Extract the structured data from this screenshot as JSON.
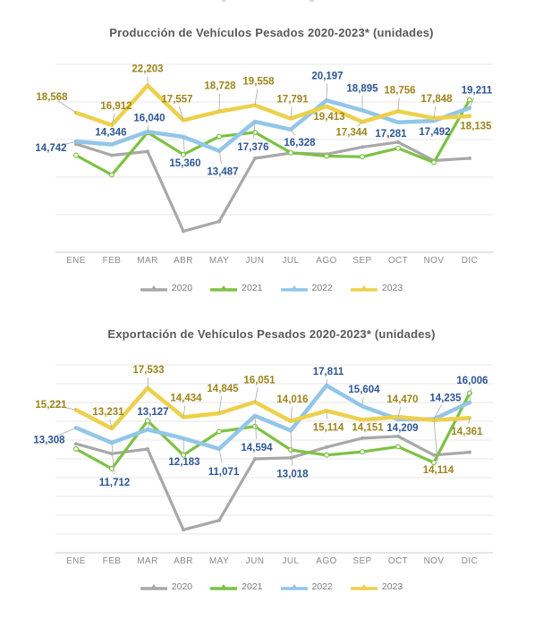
{
  "page": {
    "background": "#FFFFFF"
  },
  "chart_data": [
    {
      "type": "line",
      "title": "Producción de Vehículos Pesados 2020-2023* (unidades)",
      "categories": [
        "ENE",
        "FEB",
        "MAR",
        "ABR",
        "MAY",
        "JUN",
        "JUL",
        "AGO",
        "SEP",
        "OCT",
        "NOV",
        "DIC"
      ],
      "ylim": [
        0,
        25000
      ],
      "grid_step": 5000,
      "grid": true,
      "legend_position": "bottom",
      "series": [
        {
          "name": "2020",
          "color": "#A8A8A8",
          "show_labels": false,
          "values_estimated": true,
          "values": [
            14400,
            12900,
            13400,
            2800,
            4100,
            12500,
            13200,
            13050,
            14000,
            14650,
            12200,
            12500
          ]
        },
        {
          "name": "2021",
          "color": "#7CC242",
          "show_labels": false,
          "values_estimated": true,
          "values": [
            12900,
            10300,
            15950,
            13000,
            15400,
            15950,
            13250,
            12800,
            12700,
            13850,
            11950,
            20300
          ]
        },
        {
          "name": "2022",
          "color": "#92C6E9",
          "show_labels": true,
          "label_color": "#2D5696",
          "values": [
            14742,
            14346,
            16040,
            15360,
            13487,
            17376,
            16328,
            20197,
            18895,
            17281,
            17492,
            19211
          ],
          "label_offsets": [
            [
              -28,
              7
            ],
            [
              -1,
              -14
            ],
            [
              2,
              -16
            ],
            [
              2,
              29
            ],
            [
              4,
              23
            ],
            [
              -2,
              28
            ],
            [
              10,
              14
            ],
            [
              1,
              -28
            ],
            [
              0,
              -25
            ],
            [
              -8,
              12
            ],
            [
              1,
              12
            ],
            [
              8,
              -20
            ]
          ]
        },
        {
          "name": "2023",
          "color": "#EDD04B",
          "show_labels": true,
          "label_color": "#9E851B",
          "values": [
            18568,
            16912,
            22203,
            17557,
            18728,
            19558,
            17791,
            19413,
            17344,
            18756,
            17848,
            18135
          ],
          "label_offsets": [
            [
              -27,
              -18
            ],
            [
              5,
              -22
            ],
            [
              0,
              -19
            ],
            [
              -7,
              -24
            ],
            [
              1,
              -29
            ],
            [
              4,
              -27
            ],
            [
              2,
              -22
            ],
            [
              3,
              11
            ],
            [
              -12,
              11
            ],
            [
              2,
              -24
            ],
            [
              3,
              -22
            ],
            [
              7,
              11
            ]
          ]
        }
      ]
    },
    {
      "type": "line",
      "title": "Exportación de Vehículos Pesados 2020-2023* (unidades)",
      "categories": [
        "ENE",
        "FEB",
        "MAR",
        "ABR",
        "MAY",
        "JUN",
        "JUL",
        "AGO",
        "SEP",
        "OCT",
        "NOV",
        "DIC"
      ],
      "ylim": [
        0,
        20000
      ],
      "grid_step": 2000,
      "grid": true,
      "legend_position": "bottom",
      "series": [
        {
          "name": "2020",
          "color": "#A8A8A8",
          "show_labels": false,
          "values_estimated": true,
          "values": [
            11600,
            10550,
            11050,
            2450,
            3450,
            10000,
            10100,
            11250,
            12200,
            12400,
            10400,
            10700
          ]
        },
        {
          "name": "2021",
          "color": "#7CC242",
          "show_labels": false,
          "values_estimated": true,
          "values": [
            11050,
            8950,
            14050,
            10400,
            12900,
            13450,
            10950,
            10400,
            10750,
            11300,
            9600,
            17000
          ]
        },
        {
          "name": "2022",
          "color": "#92C6E9",
          "show_labels": true,
          "label_color": "#2D5696",
          "values": [
            13308,
            11712,
            13127,
            12183,
            11071,
            14594,
            13018,
            17811,
            15604,
            14209,
            14235,
            16006
          ],
          "label_offsets": [
            [
              -30,
              13
            ],
            [
              3,
              44
            ],
            [
              6,
              -20
            ],
            [
              1,
              26
            ],
            [
              5,
              25
            ],
            [
              2,
              35
            ],
            [
              2,
              48
            ],
            [
              2,
              -16
            ],
            [
              2,
              -19
            ],
            [
              5,
              9
            ],
            [
              13,
              -24
            ],
            [
              3,
              -25
            ]
          ]
        },
        {
          "name": "2023",
          "color": "#EDD04B",
          "show_labels": true,
          "label_color": "#9E851B",
          "values": [
            15221,
            13231,
            17533,
            14434,
            14845,
            16051,
            14016,
            15114,
            14151,
            14470,
            14114,
            14361
          ],
          "label_offsets": [
            [
              -28,
              -6
            ],
            [
              -4,
              -19
            ],
            [
              1,
              -21
            ],
            [
              3,
              -22
            ],
            [
              4,
              -28
            ],
            [
              5,
              -25
            ],
            [
              2,
              -25
            ],
            [
              2,
              18
            ],
            [
              6,
              8
            ],
            [
              5,
              -20
            ],
            [
              5,
              55
            ],
            [
              -3,
              15
            ]
          ]
        }
      ]
    }
  ],
  "legend": {
    "items": [
      "2020",
      "2021",
      "2022",
      "2023"
    ]
  },
  "style": {
    "gridline_color": "#E7E7E7",
    "axis_color": "#CCCCCC",
    "leader_color": "#ABABAB",
    "title_color": "#595959",
    "month_label_color": "#8A8A8A",
    "legend_text_color": "#7A7A7A"
  }
}
